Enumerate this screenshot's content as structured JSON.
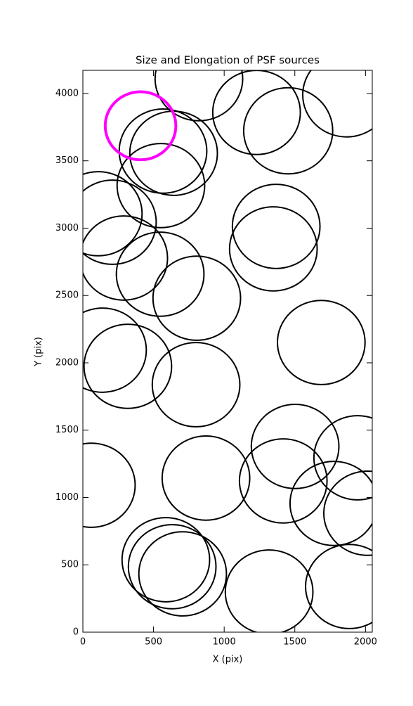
{
  "chart_data": {
    "type": "ellipse",
    "title": "Size and Elongation of PSF sources",
    "xlabel": "X (pix)",
    "ylabel": "Y (pix)",
    "xlim": [
      0,
      2048
    ],
    "ylim": [
      0,
      4172
    ],
    "xticks": [
      0,
      500,
      1000,
      1500,
      2000
    ],
    "yticks": [
      0,
      500,
      1000,
      1500,
      2000,
      2500,
      3000,
      3500,
      4000
    ],
    "series": [
      {
        "color": "#000000",
        "linewidth": 2,
        "x": [
          821,
          1229,
          1453,
          1866,
          567,
          642,
          552,
          109,
          209,
          289,
          547,
          806,
          1368,
          1348,
          1687,
          139,
          318,
          801,
          60,
          871,
          1502,
          1418,
          1945,
          1776,
          2015,
          587,
          632,
          706,
          1318,
          1886
        ],
        "y": [
          4110,
          3859,
          3723,
          3990,
          3572,
          3556,
          3316,
          3107,
          3044,
          2778,
          2658,
          2480,
          3013,
          2846,
          2151,
          2094,
          1974,
          1838,
          1091,
          1144,
          1379,
          1123,
          1295,
          956,
          883,
          538,
          486,
          433,
          298,
          339
        ],
        "width": [
          620,
          620,
          630,
          620,
          620,
          620,
          620,
          620,
          620,
          620,
          620,
          620,
          620,
          620,
          620,
          620,
          620,
          620,
          620,
          620,
          620,
          620,
          620,
          620,
          620,
          620,
          620,
          620,
          620,
          620
        ],
        "height": [
          625,
          625,
          640,
          625,
          625,
          625,
          625,
          625,
          625,
          625,
          625,
          625,
          625,
          625,
          625,
          625,
          625,
          625,
          625,
          625,
          625,
          625,
          625,
          625,
          625,
          625,
          625,
          625,
          625,
          625
        ]
      },
      {
        "color": "#ff00ff",
        "linewidth": 4,
        "x": [
          408
        ],
        "y": [
          3760
        ],
        "width": [
          500
        ],
        "height": [
          505
        ]
      }
    ]
  }
}
